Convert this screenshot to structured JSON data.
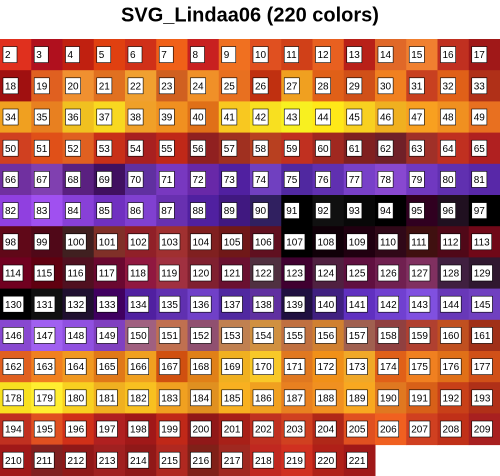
{
  "title": "SVG_Lindaa06 (220 colors)",
  "labels": [
    2,
    3,
    4,
    5,
    6,
    7,
    8,
    9,
    10,
    11,
    12,
    13,
    14,
    15,
    16,
    17,
    18,
    19,
    20,
    21,
    22,
    23,
    24,
    25,
    26,
    27,
    28,
    29,
    30,
    31,
    32,
    33,
    34,
    35,
    36,
    37,
    38,
    39,
    40,
    41,
    42,
    43,
    44,
    45,
    46,
    47,
    48,
    49,
    50,
    51,
    52,
    53,
    54,
    55,
    56,
    57,
    58,
    59,
    60,
    61,
    62,
    63,
    64,
    65,
    66,
    67,
    68,
    69,
    70,
    71,
    72,
    73,
    74,
    75,
    76,
    77,
    78,
    79,
    80,
    81,
    82,
    83,
    84,
    85,
    86,
    87,
    88,
    89,
    90,
    91,
    92,
    93,
    94,
    95,
    96,
    97,
    98,
    99,
    100,
    101,
    102,
    103,
    104,
    105,
    106,
    107,
    108,
    109,
    110,
    111,
    112,
    113,
    114,
    115,
    116,
    117,
    118,
    119,
    120,
    121,
    122,
    123,
    124,
    125,
    126,
    127,
    128,
    129,
    130,
    131,
    132,
    133,
    134,
    135,
    136,
    137,
    138,
    139,
    140,
    141,
    142,
    143,
    144,
    145,
    146,
    147,
    148,
    149,
    150,
    151,
    152,
    153,
    154,
    155,
    156,
    157,
    158,
    159,
    160,
    161,
    162,
    163,
    164,
    165,
    166,
    167,
    168,
    169,
    170,
    171,
    172,
    173,
    174,
    175,
    176,
    177,
    178,
    179,
    180,
    181,
    182,
    183,
    184,
    185,
    186,
    187,
    188,
    189,
    190,
    191,
    192,
    193,
    194,
    195,
    196,
    197,
    198,
    199,
    200,
    201,
    202,
    203,
    204,
    205,
    206,
    207,
    208,
    209,
    210,
    211,
    212,
    213,
    214,
    215,
    216,
    217,
    218,
    219,
    220,
    221
  ],
  "colors": [
    "#e0301e",
    "#b0101e",
    "#c02010",
    "#e04010",
    "#d03018",
    "#f06018",
    "#c82020",
    "#f07020",
    "#e05020",
    "#d04018",
    "#e86020",
    "#b82018",
    "#e06828",
    "#f08030",
    "#c03020",
    "#a01818",
    "#a01010",
    "#e06020",
    "#f09030",
    "#e07020",
    "#f0a030",
    "#d06020",
    "#f09028",
    "#e87020",
    "#c03010",
    "#f0a020",
    "#e06018",
    "#d05018",
    "#f08020",
    "#c84020",
    "#e06018",
    "#b03018",
    "#f0a020",
    "#e88020",
    "#f0c020",
    "#f8d820",
    "#f0a028",
    "#f09020",
    "#e07018",
    "#f8c820",
    "#f8e020",
    "#f8f020",
    "#ffe818",
    "#f8d020",
    "#f0b020",
    "#f8a020",
    "#f09020",
    "#e87020",
    "#d04020",
    "#e05018",
    "#e06020",
    "#c83018",
    "#a82020",
    "#c02818",
    "#902020",
    "#a03020",
    "#b84020",
    "#c03020",
    "#a02820",
    "#802020",
    "#702028",
    "#a03028",
    "#c03020",
    "#b02020",
    "#7030a0",
    "#8040b0",
    "#5a2080",
    "#401060",
    "#6030a0",
    "#7838c0",
    "#6828a8",
    "#5020a0",
    "#7040c0",
    "#5028a0",
    "#6030b0",
    "#7840c8",
    "#8848d0",
    "#7038c0",
    "#6030b0",
    "#5828a8",
    "#9040e0",
    "#a050f0",
    "#8840d8",
    "#7030c0",
    "#8040d0",
    "#6830b0",
    "#5020a0",
    "#401880",
    "#302060",
    "#000000",
    "#101010",
    "#080808",
    "#000000",
    "#300020",
    "#201020",
    "#000000",
    "#600818",
    "#500818",
    "#402020",
    "#803028",
    "#902028",
    "#a03030",
    "#802020",
    "#701818",
    "#601020",
    "#000000",
    "#100008",
    "#200010",
    "#300818",
    "#401010",
    "#500818",
    "#700818",
    "#700020",
    "#600010",
    "#501020",
    "#6a0830",
    "#901840",
    "#a03040",
    "#802030",
    "#6a1030",
    "#503040",
    "#400030",
    "#502040",
    "#601040",
    "#702050",
    "#803060",
    "#402040",
    "#301830",
    "#000000",
    "#101010",
    "#201030",
    "#400060",
    "#5020a0",
    "#6030b0",
    "#7040c8",
    "#5028a0",
    "#6030a0",
    "#201040",
    "#402080",
    "#6030c0",
    "#7040d0",
    "#8050e0",
    "#6838b8",
    "#7040c0",
    "#8848d0",
    "#a060f0",
    "#9050e0",
    "#8040c0",
    "#a06080",
    "#c07050",
    "#905070",
    "#c08050",
    "#d09040",
    "#c07040",
    "#d08030",
    "#a06050",
    "#904040",
    "#b04030",
    "#c05020",
    "#a03018",
    "#e06020",
    "#f08020",
    "#f09820",
    "#e07818",
    "#f0a020",
    "#d05010",
    "#e08018",
    "#f0b020",
    "#f8c828",
    "#e07820",
    "#f09018",
    "#f0a828",
    "#e06018",
    "#f08020",
    "#e07018",
    "#d05018",
    "#f8e020",
    "#ffee30",
    "#f8d020",
    "#f0b020",
    "#f8c020",
    "#f0a020",
    "#e09020",
    "#f8b020",
    "#f0a020",
    "#e88020",
    "#f09020",
    "#f8a820",
    "#e07820",
    "#d86018",
    "#c84018",
    "#b03018",
    "#c03020",
    "#e05020",
    "#d03018",
    "#b02020",
    "#a01818",
    "#c02818",
    "#901818",
    "#a82018",
    "#c03020",
    "#d04020",
    "#b02818",
    "#e05020",
    "#f06020",
    "#d04020",
    "#c03018",
    "#a82020",
    "#a01818",
    "#802020",
    "#901818",
    "#a02020",
    "#901818",
    "#b02820",
    "#802018",
    "#a02820",
    "#c02820",
    "#d03020",
    "#b02018",
    "#a01818"
  ]
}
